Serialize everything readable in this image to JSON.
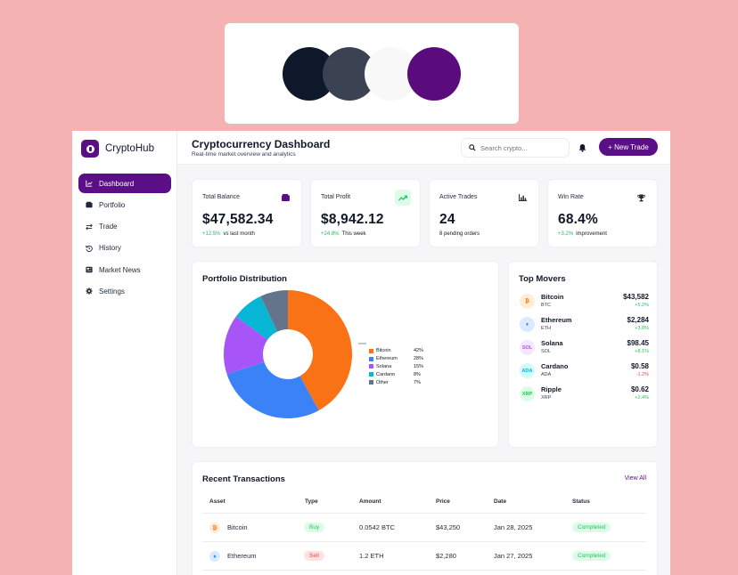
{
  "palette": [
    "#0f172a",
    "#3b4352",
    "#f8f8f8",
    "#5a0b7c"
  ],
  "app": {
    "name": "CryptoHub"
  },
  "sidebar": {
    "items": [
      {
        "label": "Dashboard",
        "icon": "chart-line-icon"
      },
      {
        "label": "Portfolio",
        "icon": "wallet-icon"
      },
      {
        "label": "Trade",
        "icon": "exchange-icon"
      },
      {
        "label": "History",
        "icon": "history-icon"
      },
      {
        "label": "Market News",
        "icon": "newspaper-icon"
      },
      {
        "label": "Settings",
        "icon": "gear-icon"
      }
    ]
  },
  "header": {
    "title": "Cryptocurrency Dashboard",
    "subtitle": "Real-time market overview and analytics",
    "search_placeholder": "Search crypto...",
    "new_trade": "+ New Trade"
  },
  "stats": [
    {
      "title": "Total Balance",
      "value": "$47,582.34",
      "change": "+12.5%",
      "note": "vs last month",
      "icon": "wallet-icon"
    },
    {
      "title": "Total Profit",
      "value": "$8,942.12",
      "change": "+24.8%",
      "note": "This week",
      "icon": "trending-up-icon"
    },
    {
      "title": "Active Trades",
      "value": "24",
      "change": "",
      "note": "8 pending orders",
      "icon": "bar-chart-icon"
    },
    {
      "title": "Win Rate",
      "value": "68.4%",
      "change": "+3.2%",
      "note": "improvement",
      "icon": "trophy-icon"
    }
  ],
  "portfolio": {
    "title": "Portfolio Distribution",
    "chart_data": {
      "type": "pie",
      "categories": [
        "Bitcoin",
        "Ethereum",
        "Solana",
        "Cardano",
        "Other"
      ],
      "values": [
        42,
        28,
        15,
        8,
        7
      ],
      "labels": [
        "42%",
        "28%",
        "15%",
        "8%",
        "7%"
      ],
      "colors": [
        "#f97316",
        "#3b82f6",
        "#a855f7",
        "#06b6d4",
        "#64748b"
      ],
      "legend_position": "right"
    }
  },
  "movers": {
    "title": "Top Movers",
    "items": [
      {
        "name": "Bitcoin",
        "symbol": "BTC",
        "icon_text": "₿",
        "price": "$43,582",
        "change": "+5.2%",
        "up": true,
        "fg": "#f97316",
        "bg": "#ffedd5"
      },
      {
        "name": "Ethereum",
        "symbol": "ETH",
        "icon_text": "♦",
        "price": "$2,284",
        "change": "+3.8%",
        "up": true,
        "fg": "#3b82f6",
        "bg": "#dbeafe"
      },
      {
        "name": "Solana",
        "symbol": "SOL",
        "icon_text": "SOL",
        "price": "$98.45",
        "change": "+8.1%",
        "up": true,
        "fg": "#a855f7",
        "bg": "#f3e8ff"
      },
      {
        "name": "Cardano",
        "symbol": "ADA",
        "icon_text": "ADA",
        "price": "$0.58",
        "change": "-1.2%",
        "up": false,
        "fg": "#06b6d4",
        "bg": "#cffafe"
      },
      {
        "name": "Ripple",
        "symbol": "XRP",
        "icon_text": "XRP",
        "price": "$0.62",
        "change": "+2.4%",
        "up": true,
        "fg": "#22c55e",
        "bg": "#dcfce7"
      }
    ]
  },
  "transactions": {
    "title": "Recent Transactions",
    "view_all": "View All",
    "columns": [
      "Asset",
      "Type",
      "Amount",
      "Price",
      "Date",
      "Status"
    ],
    "rows": [
      {
        "asset": "Bitcoin",
        "icon_text": "₿",
        "fg": "#f97316",
        "bg": "#ffedd5",
        "type": "Buy",
        "amount": "0.0542 BTC",
        "price": "$43,250",
        "date": "Jan 28, 2025",
        "status": "Completed"
      },
      {
        "asset": "Ethereum",
        "icon_text": "♦",
        "fg": "#3b82f6",
        "bg": "#dbeafe",
        "type": "Sell",
        "amount": "1.2 ETH",
        "price": "$2,280",
        "date": "Jan 27, 2025",
        "status": "Completed"
      }
    ]
  }
}
